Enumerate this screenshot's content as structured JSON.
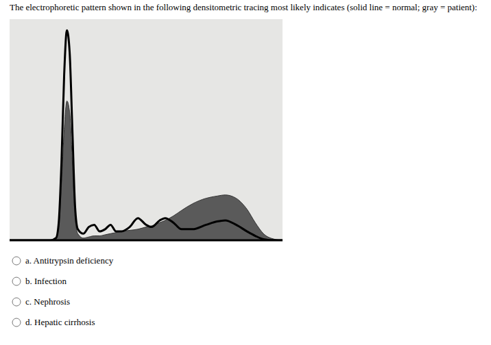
{
  "question": "The electrophoretic pattern shown in the following densitometric tracing most likely indicates (solid line = normal; gray = patient):",
  "options": [
    "a. Antitrypsin deficiency",
    "b. Infection",
    "c. Nephrosis",
    "d. Hepatic cirrhosis"
  ],
  "chart_data": {
    "type": "area",
    "x": [
      0,
      15,
      17,
      18,
      19,
      20,
      21,
      22,
      23,
      24,
      25,
      27,
      29,
      31,
      33,
      35,
      37,
      39,
      41,
      44,
      47,
      50,
      52,
      55,
      57,
      60,
      63,
      67,
      72,
      76,
      79,
      83,
      87,
      90,
      93,
      97,
      100
    ],
    "series": [
      {
        "type": "area",
        "color": "#5a5a5a",
        "values": [
          0,
          0,
          1,
          6,
          25,
          50,
          63,
          58,
          35,
          10,
          3,
          1,
          1.5,
          2,
          2,
          2.5,
          3,
          3.5,
          4,
          4.5,
          5,
          6,
          6.5,
          8,
          9,
          11,
          13.5,
          16.5,
          19,
          20,
          20.5,
          19,
          14,
          8,
          3,
          0.5,
          0
        ]
      },
      {
        "type": "line",
        "color": "#000000",
        "values": [
          0,
          0,
          1,
          8,
          35,
          75,
          95,
          85,
          50,
          15,
          5,
          3,
          6,
          7,
          4,
          5,
          7,
          4,
          4,
          6,
          10,
          7,
          6,
          9,
          10,
          8,
          5,
          5,
          7,
          8.5,
          9,
          7,
          4,
          2,
          0.5,
          0,
          0
        ]
      }
    ],
    "xlim": [
      0,
      100
    ],
    "ylim": [
      0,
      100
    ],
    "tick_labels": false
  }
}
